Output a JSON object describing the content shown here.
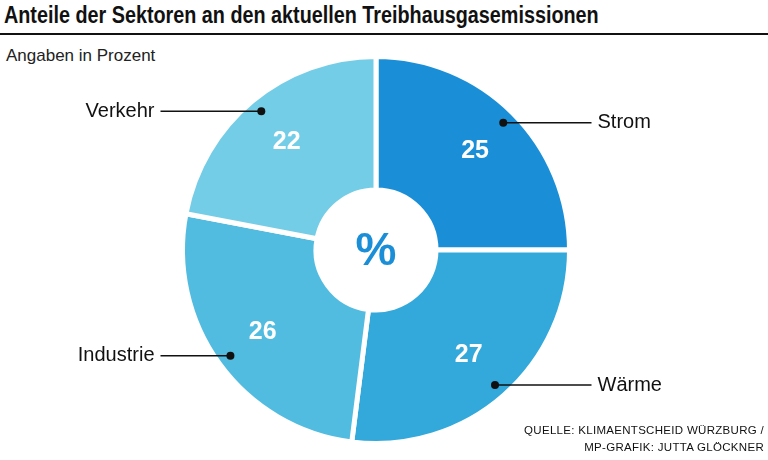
{
  "chart_data": {
    "type": "doughnut",
    "title": "Anteile der Sektoren an den aktuellen Treibhausgasemissionen",
    "subtitle": "Angaben in Prozent",
    "center_label": "%",
    "source": [
      "QUELLE: KLIMAENTSCHEID WÜRZBURG /",
      "MP-GRAFIK: JUTTA GLÖCKNER"
    ],
    "categories": [
      "Strom",
      "Wärme",
      "Industrie",
      "Verkehr"
    ],
    "values": [
      25,
      27,
      26,
      22
    ],
    "colors": [
      "#1a8fd8",
      "#33a8da",
      "#52bce0",
      "#74cde6"
    ],
    "data_labels": true
  }
}
